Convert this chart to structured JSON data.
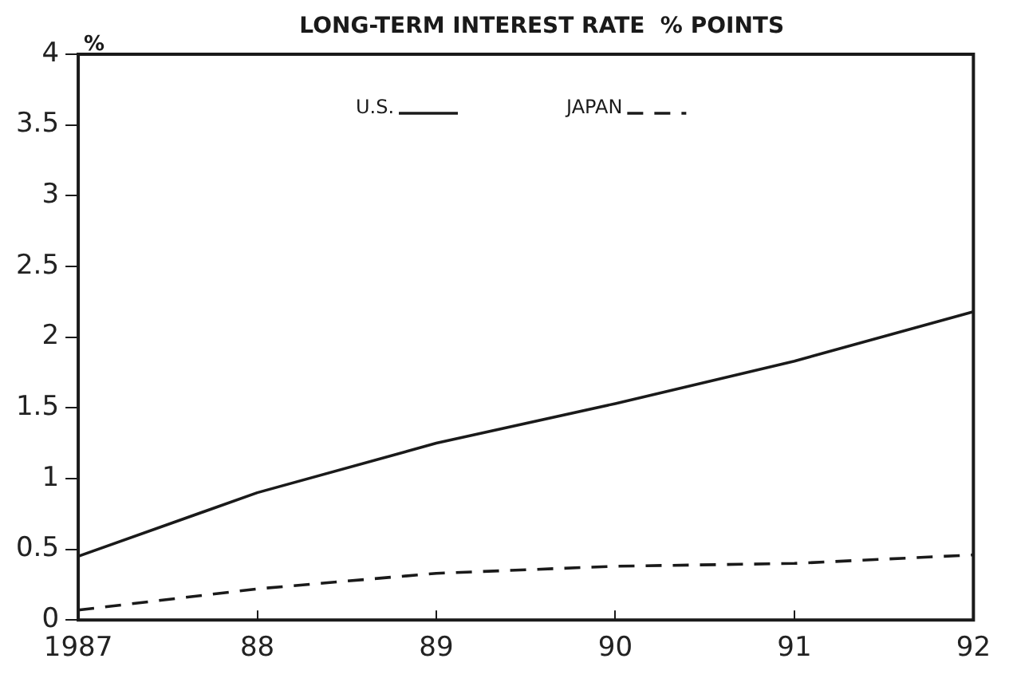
{
  "chart_data": {
    "type": "line",
    "title": "LONG-TERM INTEREST RATE  % POINTS",
    "ylabel": "%",
    "categories": [
      "1987",
      "88",
      "89",
      "90",
      "91",
      "92"
    ],
    "series": [
      {
        "name": "U.S.",
        "color": "#1a1a1a",
        "line_style": "solid",
        "values": [
          0.45,
          0.9,
          1.25,
          1.53,
          1.83,
          2.18
        ]
      },
      {
        "name": "JAPAN",
        "color": "#1a1a1a",
        "line_style": "dashed",
        "values": [
          0.07,
          0.22,
          0.33,
          0.38,
          0.4,
          0.46
        ]
      }
    ],
    "ylim": [
      0,
      4
    ],
    "yticks": [
      0,
      0.5,
      1,
      1.5,
      2,
      2.5,
      3,
      3.5,
      4
    ],
    "grid": false,
    "legend": "top",
    "marker": "none"
  }
}
